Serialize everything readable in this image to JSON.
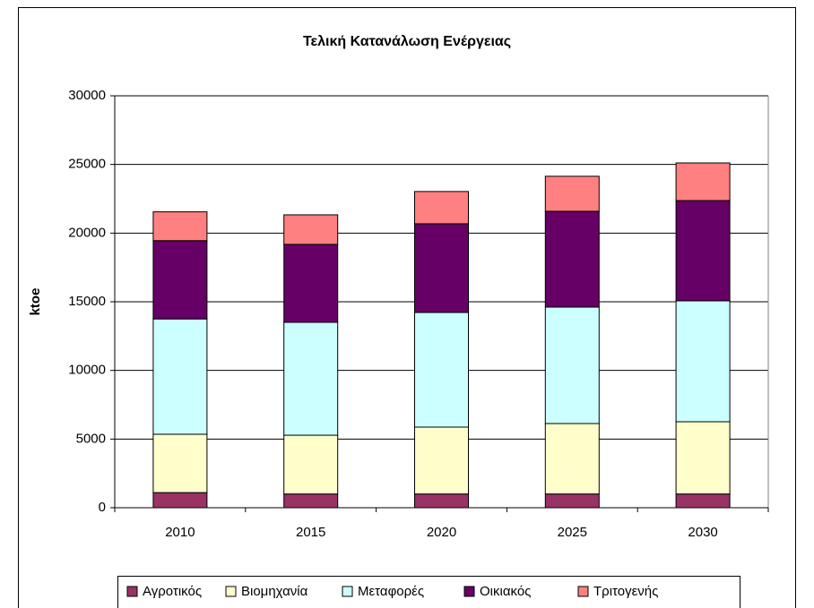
{
  "chart_data": {
    "type": "stacked_bar",
    "title": "Τελική Κατανάλωση Ενέργειας",
    "y_label": "ktoe",
    "categories": [
      "2010",
      "2015",
      "2020",
      "2025",
      "2030"
    ],
    "series": [
      {
        "name": "Αγροτικός",
        "color": "#993366",
        "values": [
          1100,
          1000,
          1000,
          1000,
          1000
        ]
      },
      {
        "name": "Βιομηχανία",
        "color": "#ffffcc",
        "values": [
          4250,
          4280,
          4870,
          5130,
          5260
        ]
      },
      {
        "name": "Μεταφορές",
        "color": "#ccffff",
        "values": [
          8400,
          8220,
          8350,
          8480,
          8810
        ]
      },
      {
        "name": "Οικιακός",
        "color": "#660066",
        "values": [
          5700,
          5680,
          6460,
          6980,
          7300
        ]
      },
      {
        "name": "Τριτογενής",
        "color": "#ff8080",
        "values": [
          2100,
          2150,
          2350,
          2550,
          2740
        ]
      }
    ],
    "ylim": [
      0,
      30000
    ],
    "yticks": [
      0,
      5000,
      10000,
      15000,
      20000,
      25000,
      30000
    ],
    "grid": true,
    "legend": "bottom"
  }
}
